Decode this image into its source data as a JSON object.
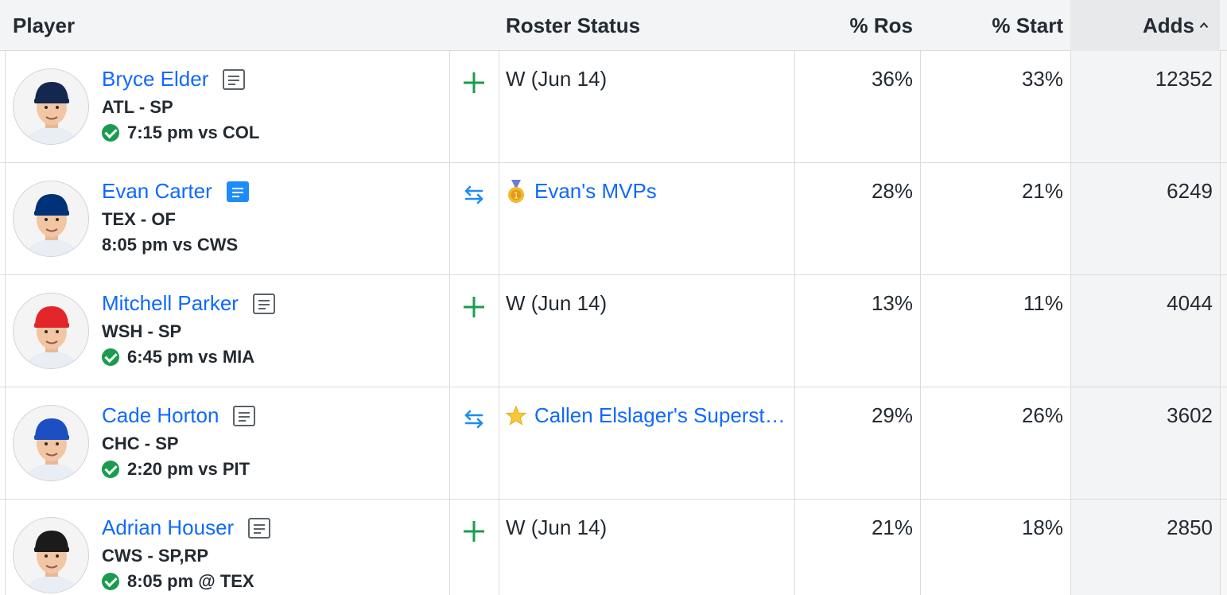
{
  "header": {
    "player": "Player",
    "roster_status": "Roster Status",
    "pct_ros": "% Ros",
    "pct_start": "% Start",
    "adds": "Adds"
  },
  "rows": [
    {
      "name": "Bryce Elder",
      "team_pos": "ATL - SP",
      "game": "7:15 pm vs COL",
      "game_confirmed": true,
      "note_active": false,
      "action": "add",
      "status": "W (Jun 14)",
      "status_is_team": false,
      "cap": "#13274F",
      "pct_ros": "36%",
      "pct_start": "33%",
      "adds": "12352"
    },
    {
      "name": "Evan Carter",
      "team_pos": "TEX - OF",
      "game": "8:05 pm vs CWS",
      "game_confirmed": false,
      "note_active": true,
      "action": "trade",
      "status": "Evan's MVPs",
      "status_is_team": true,
      "team_icon": "medal-icon",
      "cap": "#003278",
      "pct_ros": "28%",
      "pct_start": "21%",
      "adds": "6249"
    },
    {
      "name": "Mitchell Parker",
      "team_pos": "WSH - SP",
      "game": "6:45 pm vs MIA",
      "game_confirmed": true,
      "note_active": false,
      "action": "add",
      "status": "W (Jun 14)",
      "status_is_team": false,
      "cap": "#E3262A",
      "pct_ros": "13%",
      "pct_start": "11%",
      "adds": "4044"
    },
    {
      "name": "Cade Horton",
      "team_pos": "CHC - SP",
      "game": "2:20 pm vs PIT",
      "game_confirmed": true,
      "note_active": false,
      "action": "trade",
      "status": "Callen Elslager's Superstars",
      "status_is_team": true,
      "team_icon": "star-icon",
      "cap": "#1C4FC2",
      "pct_ros": "29%",
      "pct_start": "26%",
      "adds": "3602"
    },
    {
      "name": "Adrian Houser",
      "team_pos": "CWS - SP,RP",
      "game": "8:05 pm @ TEX",
      "game_confirmed": true,
      "note_active": false,
      "action": "add",
      "status": "W (Jun 14)",
      "status_is_team": false,
      "cap": "#1b1b1b",
      "pct_ros": "21%",
      "pct_start": "18%",
      "adds": "2850"
    }
  ],
  "colors": {
    "link": "#0f69ff",
    "add_green": "#1a9c4f",
    "trade_blue": "#1d8cf8",
    "header_bg": "#f3f4f6"
  }
}
